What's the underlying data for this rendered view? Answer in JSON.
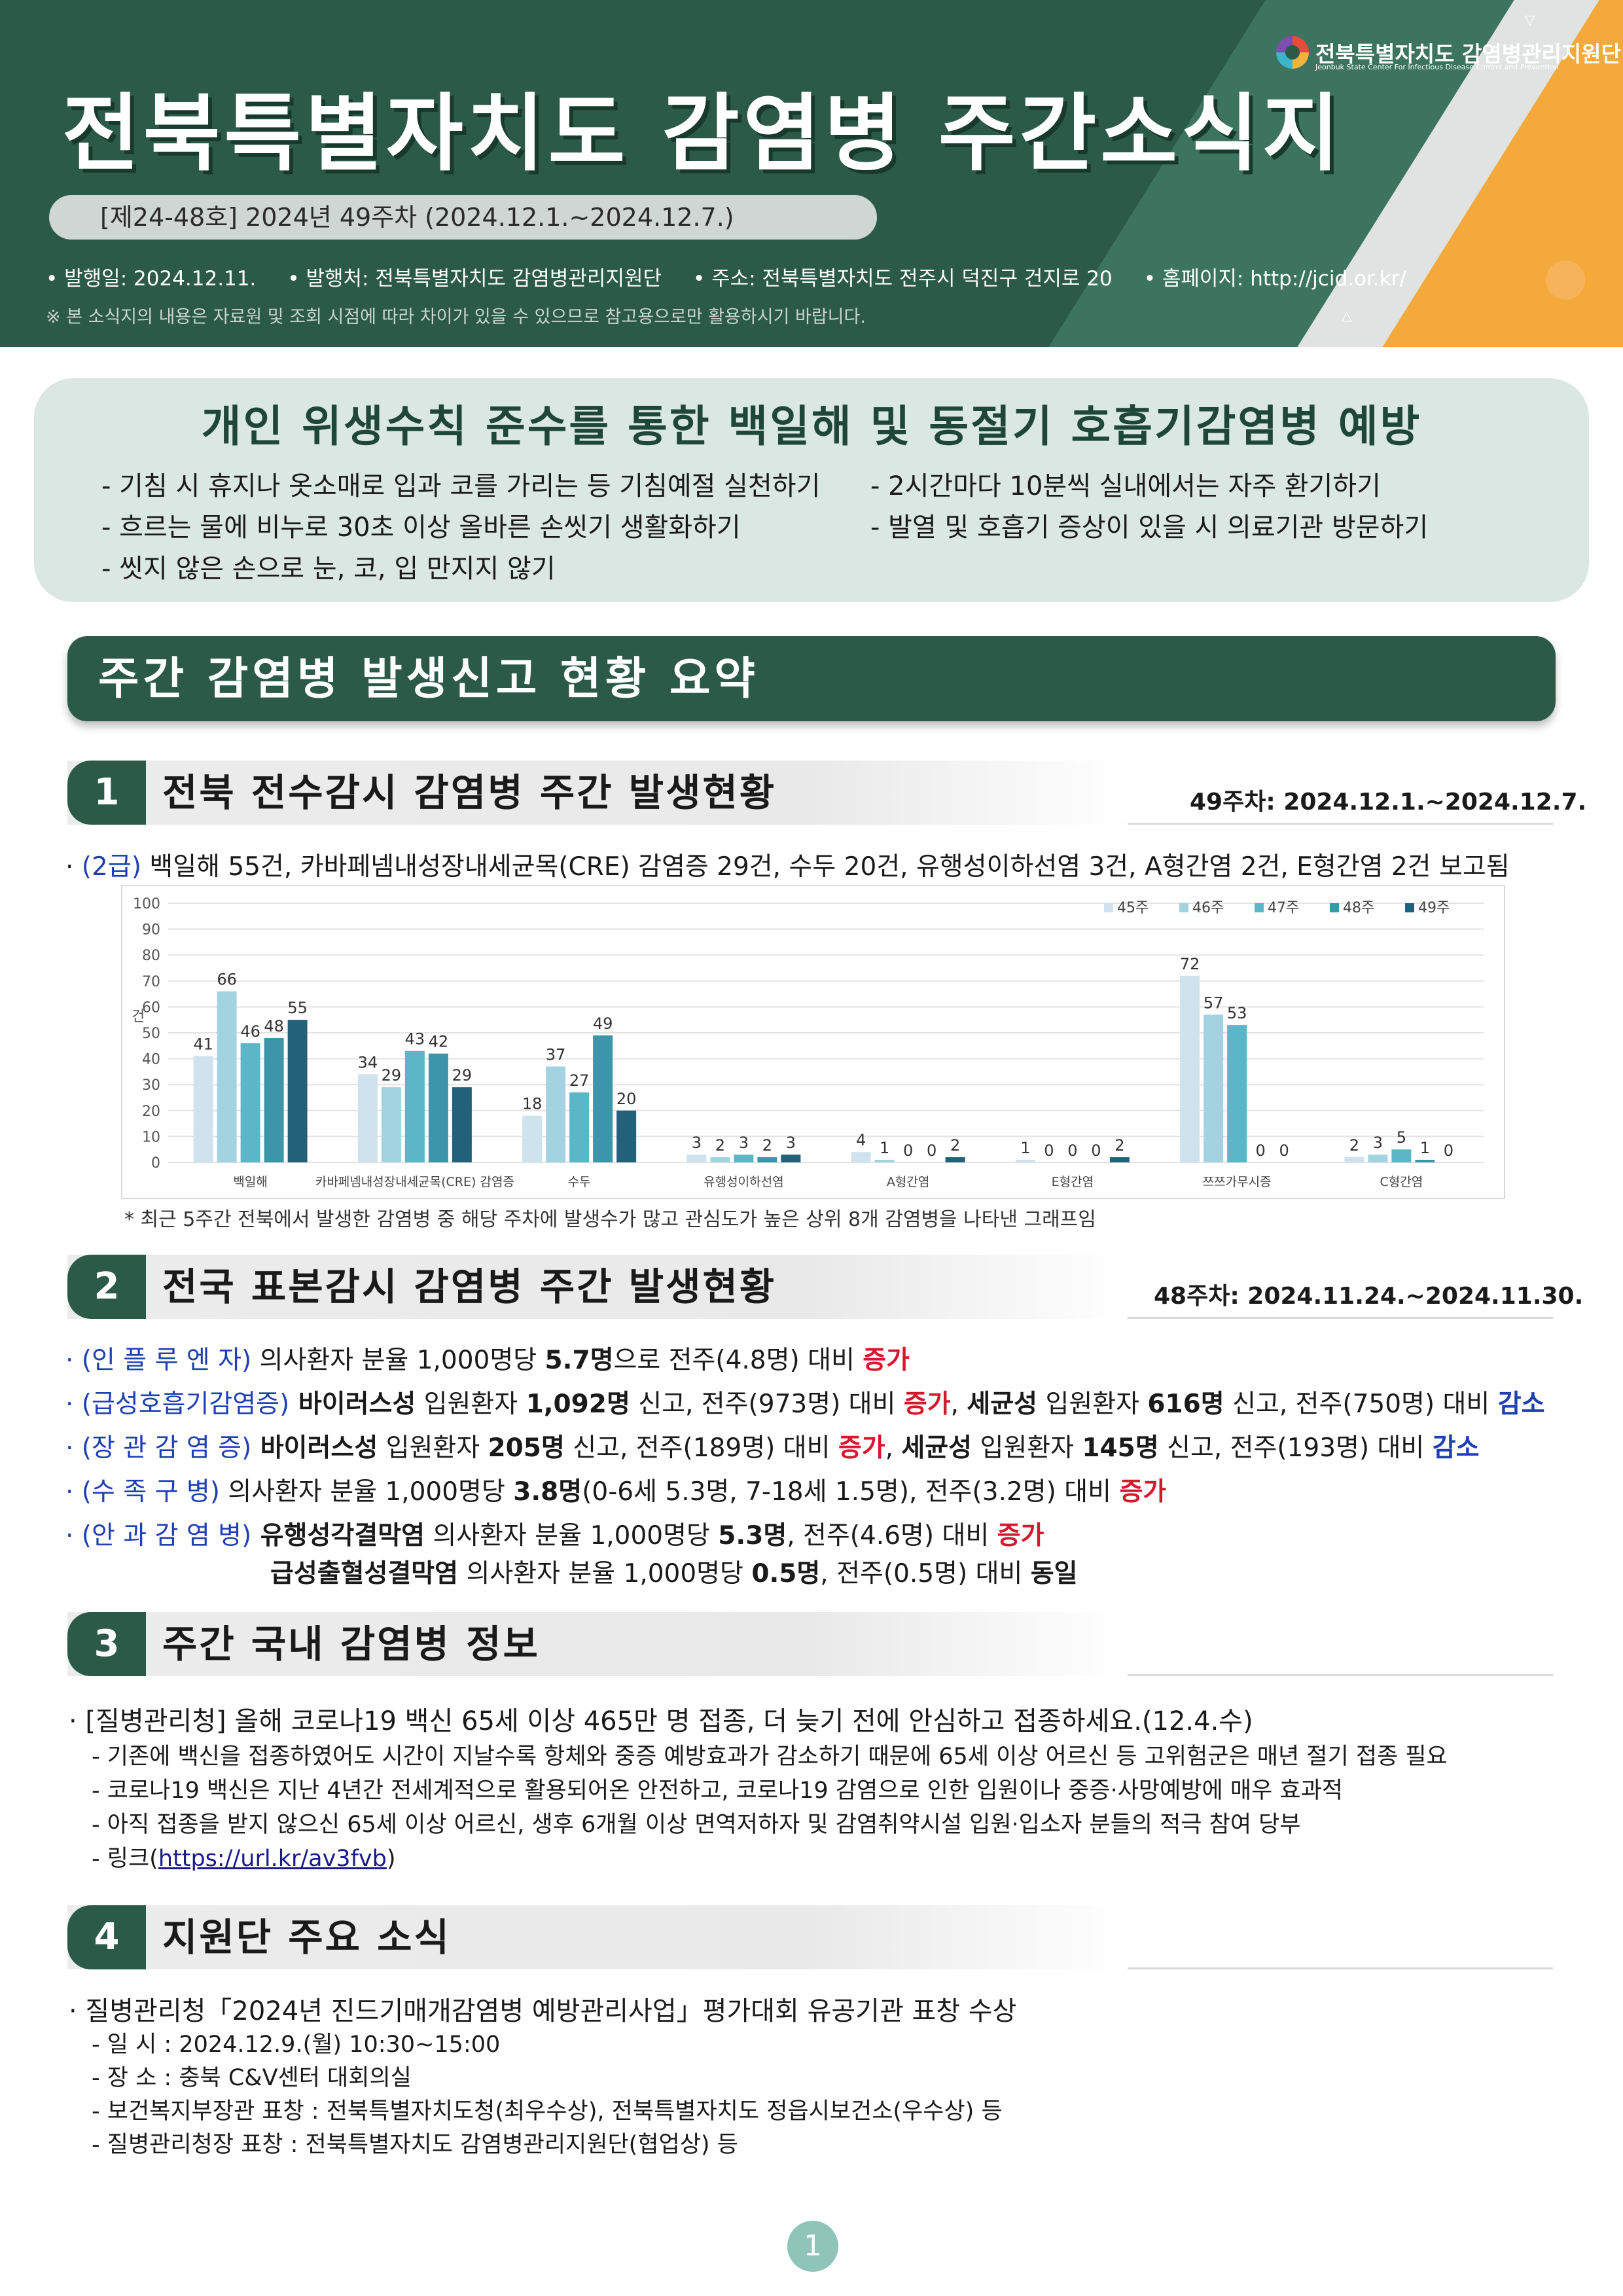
{
  "header": {
    "title": "전북특별자치도  감염병  주간소식지",
    "issue": "[제24-48호] 2024년 49주차 (2024.12.1.~2024.12.7.)",
    "meta": [
      "• 발행일: 2024.12.11.",
      "• 발행처: 전북특별자치도 감염병관리지원단",
      "• 주소: 전북특별자치도 전주시 덕진구 건지로 20",
      "• 홈페이지: http://jcid.or.kr/"
    ],
    "note": "※ 본 소식지의 내용은 자료원 및 조회 시점에 따라 차이가 있을 수 있으므로 참고용으로만 활용하시기 바랍니다.",
    "org_name": "전북특별자치도 감염병관리지원단",
    "org_sub": "Jeonbuk State Center For Infectious Disease Control and Prevention",
    "logo_icon": "jcid-logo-icon"
  },
  "prevention": {
    "title": "개인 위생수칙 준수를 통한 백일해 및 동절기 호흡기감염병 예방",
    "left": [
      "- 기침 시 휴지나 옷소매로 입과 코를 가리는 등 기침예절 실천하기",
      "- 흐르는 물에 비누로 30초 이상 올바른 손씻기 생활화하기",
      "- 씻지 않은 손으로 눈, 코, 입 만지지 않기"
    ],
    "right": [
      "- 2시간마다 10분씩 실내에서는 자주 환기하기",
      "- 발열 및 호흡기 증상이 있을 시 의료기관 방문하기"
    ]
  },
  "summary_title": "주간 감염병 발생신고 현황 요약",
  "sec1": {
    "num": "1",
    "title": "전북 전수감시 감염병 주간 발생현황",
    "date": "49주차: 2024.12.1.~2024.12.7.",
    "bullet_prefix": "· ",
    "grade": "(2급)",
    "text": " 백일해 55건, 카바페넴내성장내세균목(CRE) 감염증 29건, 수두 20건, 유행성이하선염 3건, A형간염 2건, E형간염 2건 보고됨",
    "footnote": "* 최근 5주간 전북에서 발생한 감염병 중 해당 주차에 발생수가 많고 관심도가 높은 상위 8개 감염병을 나타낸 그래프임"
  },
  "chart_data": {
    "type": "bar",
    "ylabel": "건",
    "ylim": [
      0,
      100
    ],
    "yticks": [
      "0",
      "10",
      "20",
      "30",
      "40",
      "50",
      "60",
      "70",
      "80",
      "90",
      "100"
    ],
    "legend_position": "top-right",
    "categories": [
      "백일해",
      "카바페넴내성장내세균목(CRE) 감염증",
      "수두",
      "유행성이하선염",
      "A형간염",
      "E형간염",
      "쯔쯔가무시증",
      "C형간염"
    ],
    "series": [
      {
        "name": "45주",
        "color": "#cfe3ee",
        "values": [
          41,
          34,
          18,
          3,
          4,
          1,
          72,
          2
        ]
      },
      {
        "name": "46주",
        "color": "#a3d2e0",
        "values": [
          66,
          29,
          37,
          2,
          1,
          0,
          57,
          3
        ]
      },
      {
        "name": "47주",
        "color": "#5bb7c8",
        "values": [
          46,
          43,
          27,
          3,
          0,
          0,
          53,
          5
        ]
      },
      {
        "name": "48주",
        "color": "#3c95a8",
        "values": [
          48,
          42,
          49,
          2,
          0,
          0,
          0,
          1
        ]
      },
      {
        "name": "49주",
        "color": "#23607a",
        "values": [
          55,
          29,
          20,
          3,
          2,
          2,
          0,
          0
        ]
      }
    ]
  },
  "sec2": {
    "num": "2",
    "title": "전국 표본감시 감염병 주간 발생현황",
    "date": "48주차: 2024.11.24.~2024.11.30.",
    "l1": {
      "label": "· (인 플 루 엔 자)",
      "a": " 의사환자 분율 1,000명당 ",
      "b": "5.7명",
      "c": "으로 전주(4.8명) 대비 ",
      "d": "증가"
    },
    "l2": {
      "label": "· (급성호흡기감염증)",
      "a": " 바이러스성",
      "b": " 입원환자 ",
      "c": "1,092명",
      "d": " 신고, 전주(973명) 대비 ",
      "e": "증가",
      "f": ", ",
      "g": "세균성",
      "h": " 입원환자 ",
      "i": "616명",
      "j": " 신고, 전주(750명) 대비 ",
      "k": "감소"
    },
    "l3": {
      "label": "· (장 관 감 염 증)",
      "a": " 바이러스성",
      "b": " 입원환자 ",
      "c": "205명",
      "d": " 신고, 전주(189명) 대비 ",
      "e": "증가",
      "f": ", ",
      "g": "세균성",
      "h": " 입원환자 ",
      "i": "145명",
      "j": " 신고, 전주(193명) 대비 ",
      "k": "감소"
    },
    "l4": {
      "label": "· (수   족   구   병)",
      "a": " 의사환자 분율 1,000명당 ",
      "b": "3.8명",
      "c": "(0-6세 5.3명, 7-18세 1.5명), 전주(3.2명) 대비 ",
      "d": "증가"
    },
    "l5": {
      "label": "· (안 과 감 염 병)",
      "a": " 유행성각결막염",
      "b": " 의사환자 분율 1,000명당 ",
      "c": "5.3명",
      "d": ", 전주(4.6명) 대비 ",
      "e": "증가"
    },
    "l6": {
      "a": "급성출혈성결막염",
      "b": " 의사환자 분율 1,000명당 ",
      "c": "0.5명",
      "d": ", 전주(0.5명) 대비 ",
      "e": "동일"
    }
  },
  "sec3": {
    "num": "3",
    "title": "주간 국내 감염병 정보",
    "headline": "· [질병관리청] 올해 코로나19 백신 65세 이상 465만 명 접종, 더 늦기 전에 안심하고 접종하세요.(12.4.수)",
    "items": [
      "- 기존에 백신을 접종하였어도 시간이 지날수록 항체와 중증 예방효과가 감소하기 때문에 65세 이상 어르신 등 고위험군은 매년 절기 접종 필요",
      "- 코로나19 백신은 지난 4년간 전세계적으로 활용되어온 안전하고, 코로나19 감염으로 인한 입원이나 중증·사망예방에 매우 효과적",
      "- 아직 접종을 받지 않으신 65세 이상 어르신, 생후 6개월 이상 면역저하자 및 감염취약시설 입원·입소자 분들의 적극 참여 당부"
    ],
    "link_prefix": "- 링크(",
    "link": "https://url.kr/av3fvb",
    "link_suffix": ")"
  },
  "sec4": {
    "num": "4",
    "title": "지원단 주요 소식",
    "headline": "· 질병관리청「2024년 진드기매개감염병 예방관리사업」평가대회 유공기관 표창 수상",
    "items": [
      "- 일    시 : 2024.12.9.(월) 10:30~15:00",
      "- 장    소 : 충북 C&V센터 대회의실",
      "- 보건복지부장관 표창 : 전북특별자치도청(최우수상), 전북특별자치도 정읍시보건소(우수상) 등",
      "- 질병관리청장 표창 : 전북특별자치도 감염병관리지원단(협업상) 등"
    ]
  },
  "page_number": "1"
}
